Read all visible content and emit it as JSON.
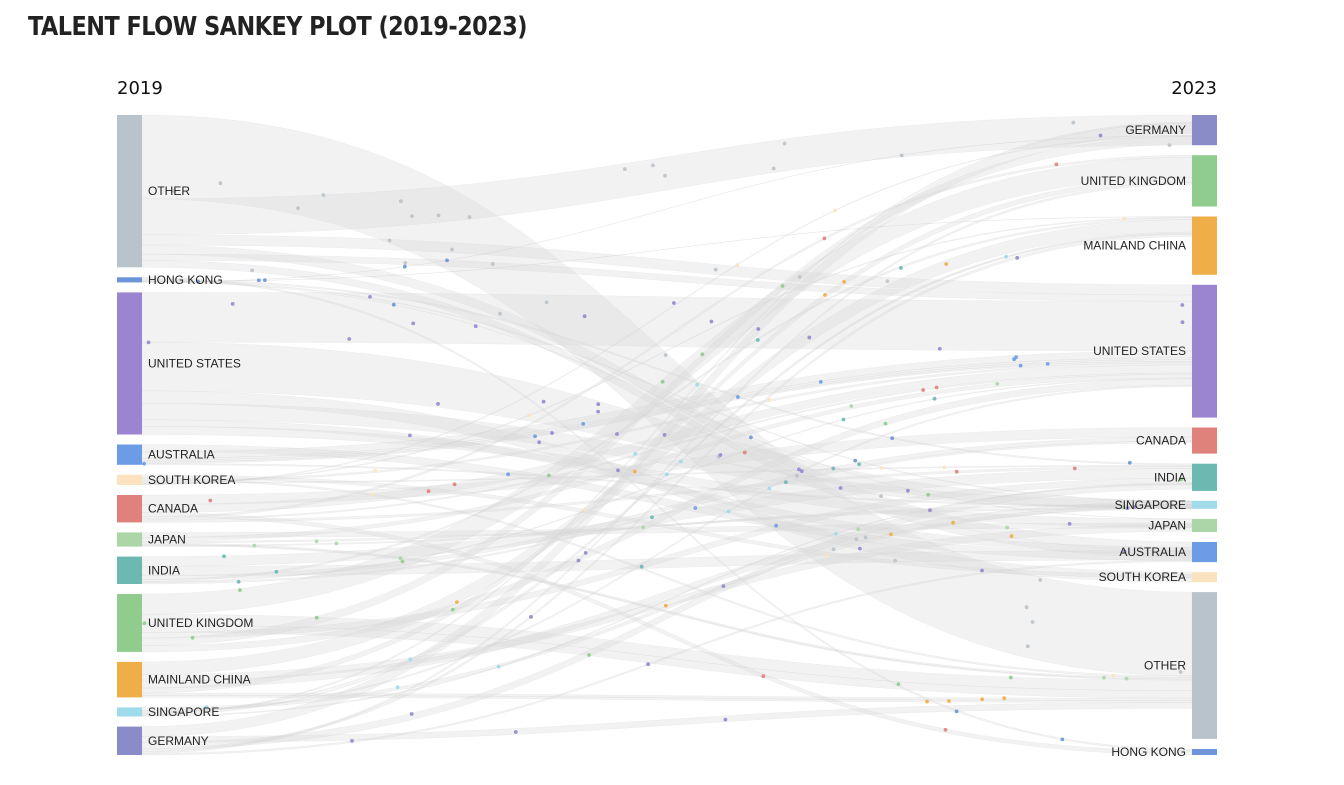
{
  "title": "TALENT FLOW SANKEY PLOT (2019-2023)",
  "chart_data": {
    "type": "sankey",
    "title": "TALENT FLOW SANKEY PLOT (2019-2023)",
    "left_label": "2019",
    "right_label": "2023",
    "left_nodes": [
      {
        "name": "OTHER",
        "value": 150,
        "color": "#b9c3cb"
      },
      {
        "name": "HONG KONG",
        "value": 5,
        "color": "#6b95d8"
      },
      {
        "name": "UNITED STATES",
        "value": 140,
        "color": "#9b85d1"
      },
      {
        "name": "AUSTRALIA",
        "value": 20,
        "color": "#6d9ce6"
      },
      {
        "name": "SOUTH KOREA",
        "value": 10,
        "color": "#fbe3c0"
      },
      {
        "name": "CANADA",
        "value": 27,
        "color": "#e0817c"
      },
      {
        "name": "JAPAN",
        "value": 14,
        "color": "#acd6a8"
      },
      {
        "name": "INDIA",
        "value": 27,
        "color": "#6cb9b2"
      },
      {
        "name": "UNITED KINGDOM",
        "value": 57,
        "color": "#8fcc8d"
      },
      {
        "name": "MAINLAND CHINA",
        "value": 35,
        "color": "#efae47"
      },
      {
        "name": "SINGAPORE",
        "value": 9,
        "color": "#9fdbe9"
      },
      {
        "name": "GERMANY",
        "value": 28,
        "color": "#8a8cc9"
      }
    ],
    "right_nodes": [
      {
        "name": "GERMANY",
        "value": 30,
        "color": "#8a8cc9"
      },
      {
        "name": "UNITED KINGDOM",
        "value": 51,
        "color": "#8fcc8d"
      },
      {
        "name": "MAINLAND CHINA",
        "value": 58,
        "color": "#efae47"
      },
      {
        "name": "UNITED STATES",
        "value": 132,
        "color": "#9b85d1"
      },
      {
        "name": "CANADA",
        "value": 26,
        "color": "#e0817c"
      },
      {
        "name": "INDIA",
        "value": 27,
        "color": "#6cb9b2"
      },
      {
        "name": "SINGAPORE",
        "value": 8,
        "color": "#9fdbe9"
      },
      {
        "name": "JAPAN",
        "value": 13,
        "color": "#acd6a8"
      },
      {
        "name": "AUSTRALIA",
        "value": 20,
        "color": "#6d9ce6"
      },
      {
        "name": "SOUTH KOREA",
        "value": 10,
        "color": "#fbe3c0"
      },
      {
        "name": "OTHER",
        "value": 146,
        "color": "#b9c3cb"
      },
      {
        "name": "HONG KONG",
        "value": 6,
        "color": "#6b95d8"
      }
    ]
  }
}
